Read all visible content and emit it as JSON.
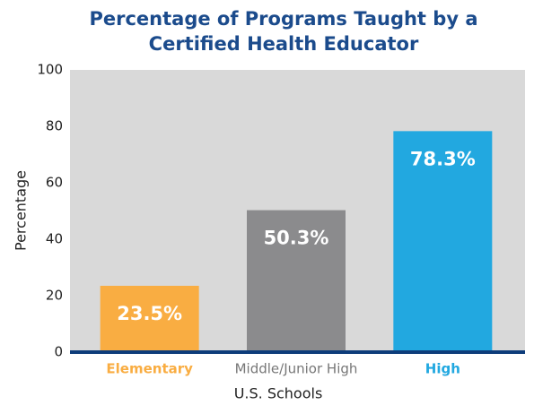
{
  "chart_data": {
    "type": "bar",
    "title": [
      "Percentage of Programs Taught by a",
      "Certified Health Educator"
    ],
    "x_label": "U.S. Schools",
    "y_label": "Percentage",
    "categories": [
      "Elementary",
      "Middle/Junior High",
      "High"
    ],
    "values": [
      23.5,
      50.3,
      78.3
    ],
    "value_labels": [
      "23.5%",
      "50.3%",
      "78.3%"
    ],
    "colors": [
      "#f9ad42",
      "#8b8b8d",
      "#22a8e0"
    ],
    "ylim": [
      0,
      100
    ],
    "yticks": [
      0,
      20,
      40,
      60,
      80,
      100
    ],
    "grid": false
  }
}
